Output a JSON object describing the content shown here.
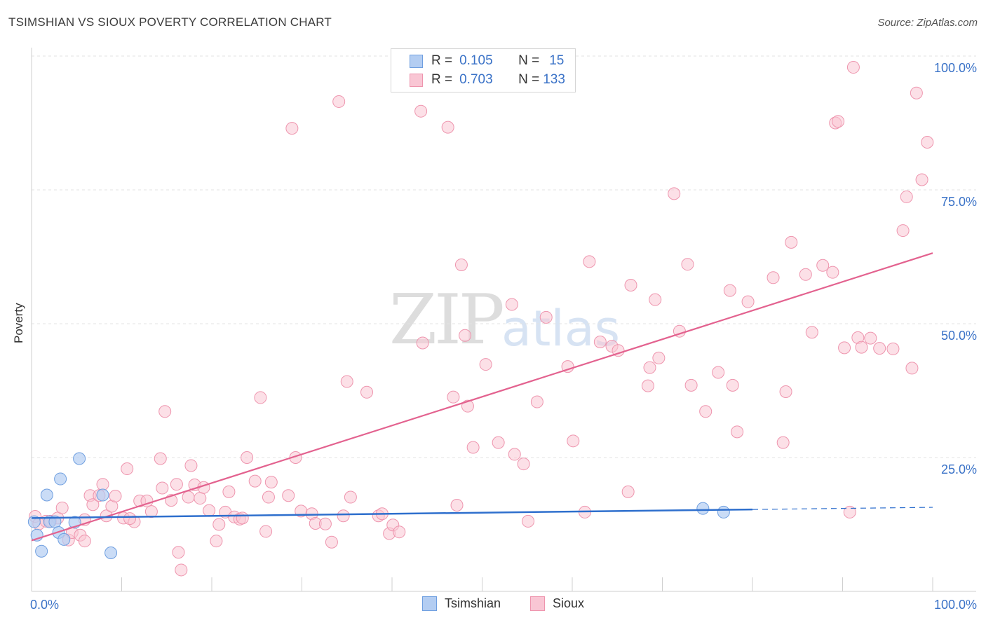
{
  "title": "TSIMSHIAN VS SIOUX POVERTY CORRELATION CHART",
  "source": "Source: ZipAtlas.com",
  "watermark": {
    "zip": "ZIP",
    "atlas": "atlas"
  },
  "legend": {
    "rows": [
      {
        "r_label": "R =",
        "r_value": "0.105",
        "n_label": "N =",
        "n_value": "15"
      },
      {
        "r_label": "R =",
        "r_value": "0.703",
        "n_label": "N =",
        "n_value": "133"
      }
    ]
  },
  "colors": {
    "tsimshian_fill": "#b3cdf2",
    "tsimshian_stroke": "#6f9fe0",
    "tsimshian_line": "#2e6fcd",
    "sioux_fill": "#f9c6d4",
    "sioux_stroke": "#ee95ae",
    "sioux_line": "#e3628f",
    "tick_text": "#3a72c7"
  },
  "chart_data": {
    "type": "scatter",
    "title": "TSIMSHIAN VS SIOUX POVERTY CORRELATION CHART",
    "xlabel": "",
    "ylabel": "Poverty",
    "xlim": [
      0,
      100
    ],
    "ylim": [
      0,
      100
    ],
    "x_tick_labels": [
      "0.0%",
      "100.0%"
    ],
    "y_ticks": [
      25,
      50,
      75,
      100
    ],
    "y_tick_labels": [
      "25.0%",
      "50.0%",
      "75.0%",
      "100.0%"
    ],
    "grid": true,
    "series": [
      {
        "name": "Tsimshian",
        "r": 0.105,
        "n": 15,
        "points": [
          [
            0.3,
            13
          ],
          [
            0.6,
            10.5
          ],
          [
            1.1,
            7.5
          ],
          [
            1.7,
            18
          ],
          [
            2,
            13
          ],
          [
            2.6,
            13
          ],
          [
            3,
            11
          ],
          [
            3.2,
            21
          ],
          [
            3.6,
            9.7
          ],
          [
            4.8,
            12.9
          ],
          [
            5.3,
            24.8
          ],
          [
            7.9,
            18
          ],
          [
            8.8,
            7.2
          ],
          [
            74.5,
            15.5
          ],
          [
            76.8,
            14.8
          ]
        ],
        "trend": {
          "x": [
            0,
            80
          ],
          "y": [
            13.7,
            15.3
          ],
          "dashed_to_x": 100,
          "dashed_to_y": 15.7
        }
      },
      {
        "name": "Sioux",
        "r": 0.703,
        "n": 133,
        "points": [
          [
            0.4,
            14
          ],
          [
            0.8,
            12.6
          ],
          [
            1.6,
            13.1
          ],
          [
            2.1,
            13.1
          ],
          [
            2.9,
            13.7
          ],
          [
            3.4,
            15.6
          ],
          [
            4.1,
            9.6
          ],
          [
            4.5,
            11
          ],
          [
            5.4,
            10.5
          ],
          [
            5.9,
            9.4
          ],
          [
            6.5,
            17.9
          ],
          [
            6.8,
            16.2
          ],
          [
            7.5,
            17.9
          ],
          [
            7.9,
            20
          ],
          [
            8.3,
            14.1
          ],
          [
            8.9,
            15.9
          ],
          [
            9.3,
            17.8
          ],
          [
            10.2,
            13.7
          ],
          [
            10.6,
            22.9
          ],
          [
            11.4,
            13
          ],
          [
            12,
            16.9
          ],
          [
            12.8,
            16.9
          ],
          [
            13.3,
            14.9
          ],
          [
            14.5,
            19.3
          ],
          [
            14.8,
            33.6
          ],
          [
            14.3,
            24.8
          ],
          [
            15.5,
            17
          ],
          [
            16.1,
            20
          ],
          [
            16.3,
            7.3
          ],
          [
            16.6,
            4
          ],
          [
            17.4,
            17.6
          ],
          [
            17.7,
            23.5
          ],
          [
            18.1,
            19.9
          ],
          [
            18.7,
            17.4
          ],
          [
            19.1,
            19.4
          ],
          [
            19.7,
            15.1
          ],
          [
            20.5,
            9.4
          ],
          [
            20.8,
            12.5
          ],
          [
            21.5,
            14.8
          ],
          [
            21.9,
            18.6
          ],
          [
            22.5,
            13.9
          ],
          [
            23.1,
            13.5
          ],
          [
            23.4,
            13.7
          ],
          [
            23.9,
            25
          ],
          [
            24.8,
            20.6
          ],
          [
            25.4,
            36.2
          ],
          [
            26,
            11.2
          ],
          [
            26.3,
            17.6
          ],
          [
            26.6,
            20.4
          ],
          [
            28.5,
            17.9
          ],
          [
            28.9,
            86.5
          ],
          [
            29.3,
            25
          ],
          [
            29.9,
            15
          ],
          [
            31.1,
            14.5
          ],
          [
            31.5,
            12.7
          ],
          [
            32.6,
            12.6
          ],
          [
            33.3,
            9.2
          ],
          [
            34.1,
            91.5
          ],
          [
            34.6,
            14.1
          ],
          [
            35,
            39.2
          ],
          [
            35.4,
            17.6
          ],
          [
            37.2,
            37.2
          ],
          [
            38.5,
            14.1
          ],
          [
            38.9,
            14.5
          ],
          [
            39.7,
            10.8
          ],
          [
            40.1,
            12.4
          ],
          [
            40.8,
            11.1
          ],
          [
            43.2,
            89.7
          ],
          [
            43.4,
            46.4
          ],
          [
            46.2,
            86.7
          ],
          [
            46.8,
            36.3
          ],
          [
            47.2,
            16.1
          ],
          [
            47.7,
            61
          ],
          [
            48.1,
            47.8
          ],
          [
            48.4,
            34.6
          ],
          [
            49,
            26.9
          ],
          [
            50.4,
            42.4
          ],
          [
            51.8,
            27.8
          ],
          [
            53.3,
            53.6
          ],
          [
            53.6,
            25.6
          ],
          [
            54.6,
            23.8
          ],
          [
            55.1,
            13.1
          ],
          [
            56.1,
            35.4
          ],
          [
            57.1,
            51.2
          ],
          [
            59.5,
            42
          ],
          [
            60.1,
            28.1
          ],
          [
            61.4,
            14.8
          ],
          [
            61.9,
            61.6
          ],
          [
            63.1,
            46.6
          ],
          [
            64.4,
            45.8
          ],
          [
            65.1,
            45
          ],
          [
            66.2,
            18.6
          ],
          [
            66.5,
            57.2
          ],
          [
            68.4,
            38.4
          ],
          [
            68.6,
            41.8
          ],
          [
            69.2,
            54.5
          ],
          [
            69.6,
            43.6
          ],
          [
            71.3,
            74.3
          ],
          [
            71.9,
            48.6
          ],
          [
            72.8,
            61.1
          ],
          [
            73.2,
            38.5
          ],
          [
            74.8,
            33.6
          ],
          [
            76.2,
            40.9
          ],
          [
            77.5,
            56.2
          ],
          [
            77.8,
            38.5
          ],
          [
            78.3,
            29.8
          ],
          [
            79.5,
            54.1
          ],
          [
            82.3,
            58.6
          ],
          [
            83.4,
            27.8
          ],
          [
            83.7,
            37.3
          ],
          [
            84.3,
            65.2
          ],
          [
            85.9,
            59.2
          ],
          [
            86.6,
            48.4
          ],
          [
            87.8,
            60.9
          ],
          [
            88.9,
            59.6
          ],
          [
            89.2,
            87.5
          ],
          [
            89.5,
            87.8
          ],
          [
            90.2,
            45.5
          ],
          [
            90.8,
            14.8
          ],
          [
            91.2,
            97.9
          ],
          [
            91.7,
            47.4
          ],
          [
            92.1,
            45.6
          ],
          [
            93.1,
            47.3
          ],
          [
            94.1,
            45.4
          ],
          [
            95.6,
            45.3
          ],
          [
            96.7,
            67.4
          ],
          [
            97.1,
            73.7
          ],
          [
            97.7,
            41.7
          ],
          [
            98.2,
            93.1
          ],
          [
            98.8,
            76.9
          ],
          [
            99.4,
            83.9
          ],
          [
            5.9,
            13.4
          ],
          [
            10.9,
            13.6
          ]
        ],
        "trend": {
          "x": [
            0,
            100
          ],
          "y": [
            9.5,
            63.2
          ]
        }
      }
    ],
    "legend_position": "top-center"
  }
}
